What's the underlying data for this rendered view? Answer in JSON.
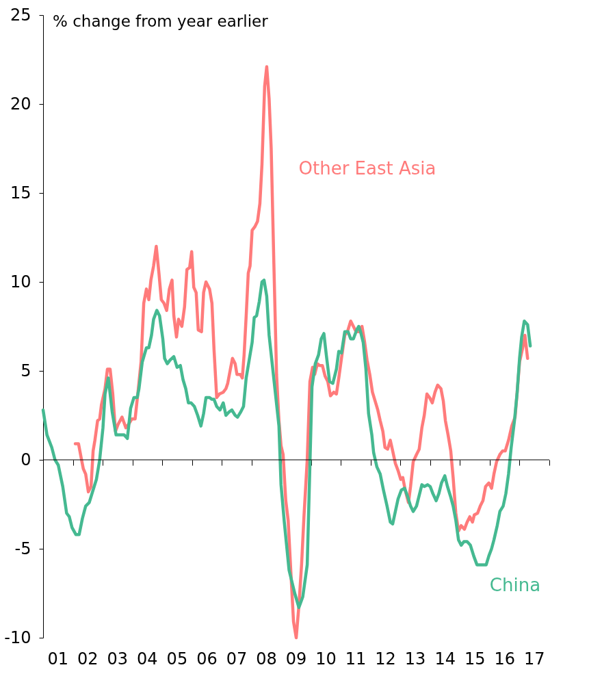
{
  "chart_data": {
    "type": "line",
    "ylabel": "% change from year earlier",
    "xlim": [
      0.5,
      17.5
    ],
    "ylim": [
      -10,
      25
    ],
    "yticks": [
      -10,
      -5,
      0,
      5,
      10,
      15,
      20,
      25
    ],
    "xticks": [
      {
        "value": 0.5,
        "label": null
      },
      {
        "value": 1,
        "label": "01"
      },
      {
        "value": 1.5,
        "label": null
      },
      {
        "value": 2,
        "label": "02"
      },
      {
        "value": 2.5,
        "label": null
      },
      {
        "value": 3,
        "label": "03"
      },
      {
        "value": 3.5,
        "label": null
      },
      {
        "value": 4,
        "label": "04"
      },
      {
        "value": 4.5,
        "label": null
      },
      {
        "value": 5,
        "label": "05"
      },
      {
        "value": 5.5,
        "label": null
      },
      {
        "value": 6,
        "label": "06"
      },
      {
        "value": 6.5,
        "label": null
      },
      {
        "value": 7,
        "label": "07"
      },
      {
        "value": 7.5,
        "label": null
      },
      {
        "value": 8,
        "label": "08"
      },
      {
        "value": 8.5,
        "label": null
      },
      {
        "value": 9,
        "label": "09"
      },
      {
        "value": 9.5,
        "label": null
      },
      {
        "value": 10,
        "label": "10"
      },
      {
        "value": 10.5,
        "label": null
      },
      {
        "value": 11,
        "label": "11"
      },
      {
        "value": 11.5,
        "label": null
      },
      {
        "value": 12,
        "label": "12"
      },
      {
        "value": 12.5,
        "label": null
      },
      {
        "value": 13,
        "label": "13"
      },
      {
        "value": 13.5,
        "label": null
      },
      {
        "value": 14,
        "label": "14"
      },
      {
        "value": 14.5,
        "label": null
      },
      {
        "value": 15,
        "label": "15"
      },
      {
        "value": 15.5,
        "label": null
      },
      {
        "value": 16,
        "label": "16"
      },
      {
        "value": 16.5,
        "label": null
      },
      {
        "value": 17,
        "label": "17"
      },
      {
        "value": 17.5,
        "label": null
      }
    ],
    "grid": false,
    "legend": false,
    "line_style": "solid",
    "ref_lines": [
      {
        "axis": "y",
        "value": 0,
        "color": "#000000"
      }
    ],
    "series": [
      {
        "name": "Other East Asia",
        "color": "#ff7b7b",
        "x": [
          1.58,
          1.69,
          1.78,
          1.85,
          1.93,
          2.02,
          2.11,
          2.18,
          2.24,
          2.33,
          2.4,
          2.46,
          2.58,
          2.66,
          2.75,
          2.84,
          2.93,
          3.02,
          3.15,
          3.28,
          3.37,
          3.48,
          3.59,
          3.68,
          3.79,
          3.88,
          3.97,
          4.05,
          4.12,
          4.21,
          4.3,
          4.39,
          4.47,
          4.56,
          4.65,
          4.74,
          4.83,
          4.89,
          4.98,
          5.05,
          5.16,
          5.25,
          5.33,
          5.42,
          5.49,
          5.56,
          5.64,
          5.71,
          5.82,
          5.89,
          5.97,
          6.09,
          6.17,
          6.24,
          6.33,
          6.42,
          6.55,
          6.64,
          6.7,
          6.79,
          6.86,
          6.95,
          7.01,
          7.12,
          7.19,
          7.25,
          7.32,
          7.39,
          7.45,
          7.52,
          7.61,
          7.7,
          7.78,
          7.85,
          7.94,
          8.01,
          8.09,
          8.16,
          8.25,
          8.34,
          8.42,
          8.49,
          8.56,
          8.65,
          8.73,
          8.82,
          8.91,
          9.0,
          9.09,
          9.18,
          9.26,
          9.37,
          9.46,
          9.55,
          9.62,
          9.71,
          9.79,
          9.88,
          9.97,
          10.06,
          10.15,
          10.26,
          10.35,
          10.43,
          10.52,
          10.63,
          10.72,
          10.83,
          10.92,
          11.01,
          11.1,
          11.21,
          11.29,
          11.38,
          11.47,
          11.56,
          11.65,
          11.74,
          11.82,
          11.91,
          11.98,
          12.07,
          12.16,
          12.24,
          12.33,
          12.42,
          12.51,
          12.58,
          12.66,
          12.77,
          12.84,
          12.93,
          13.04,
          13.13,
          13.22,
          13.3,
          13.39,
          13.48,
          13.57,
          13.66,
          13.75,
          13.86,
          13.94,
          14.01,
          14.1,
          14.19,
          14.27,
          14.36,
          14.45,
          14.54,
          14.65,
          14.74,
          14.83,
          14.92,
          14.98,
          15.09,
          15.18,
          15.27,
          15.36,
          15.47,
          15.56,
          15.64,
          15.73,
          15.84,
          15.93,
          16.02,
          16.13,
          16.24,
          16.35,
          16.42,
          16.5,
          16.62,
          16.68,
          16.77
        ],
        "values": [
          0.9,
          0.9,
          0.1,
          -0.5,
          -0.8,
          -1.8,
          -1.5,
          0.5,
          1.1,
          2.2,
          2.3,
          3.1,
          4.0,
          5.1,
          5.1,
          3.7,
          1.6,
          2.0,
          2.4,
          1.8,
          2.0,
          2.3,
          2.3,
          3.7,
          5.5,
          8.8,
          9.6,
          9.0,
          10.1,
          10.9,
          12.0,
          10.5,
          9.0,
          8.8,
          8.4,
          9.6,
          10.1,
          8.1,
          6.9,
          7.9,
          7.5,
          8.6,
          10.7,
          10.8,
          11.7,
          9.7,
          9.4,
          7.3,
          7.2,
          9.4,
          10.0,
          9.6,
          8.8,
          6.2,
          3.5,
          3.7,
          3.8,
          4.0,
          4.3,
          5.1,
          5.7,
          5.4,
          4.8,
          4.8,
          4.6,
          5.9,
          8.1,
          10.5,
          10.9,
          12.9,
          13.1,
          13.4,
          14.4,
          16.6,
          21.0,
          22.1,
          20.3,
          17.5,
          11.0,
          4.8,
          2.2,
          0.8,
          0.3,
          -2.3,
          -3.4,
          -6.3,
          -9.1,
          -10.0,
          -8.2,
          -5.9,
          -3.2,
          0.0,
          4.4,
          5.2,
          4.8,
          5.4,
          5.3,
          5.3,
          4.7,
          4.4,
          3.6,
          3.8,
          3.7,
          4.6,
          5.7,
          7.0,
          7.2,
          7.8,
          7.5,
          7.2,
          7.2,
          7.5,
          6.7,
          5.6,
          4.8,
          3.8,
          3.3,
          2.8,
          2.2,
          1.6,
          0.7,
          0.6,
          1.1,
          0.5,
          -0.2,
          -0.6,
          -1.1,
          -1.0,
          -1.7,
          -2.4,
          -1.5,
          -0.1,
          0.3,
          0.6,
          1.8,
          2.5,
          3.7,
          3.5,
          3.2,
          3.8,
          4.2,
          4.0,
          3.3,
          2.2,
          1.4,
          0.5,
          -1.0,
          -3.0,
          -4.0,
          -3.7,
          -3.9,
          -3.5,
          -3.2,
          -3.5,
          -3.1,
          -3.0,
          -2.6,
          -2.3,
          -1.5,
          -1.3,
          -1.6,
          -0.8,
          -0.1,
          0.3,
          0.5,
          0.5,
          1.1,
          1.9,
          2.4,
          3.8,
          5.5,
          6.4,
          7.0,
          5.7
        ]
      },
      {
        "name": "China",
        "color": "#45b991",
        "x": [
          0.5,
          0.63,
          0.79,
          0.9,
          1.01,
          1.16,
          1.29,
          1.38,
          1.47,
          1.6,
          1.71,
          1.82,
          1.93,
          2.05,
          2.16,
          2.29,
          2.4,
          2.51,
          2.58,
          2.69,
          2.82,
          2.95,
          3.06,
          3.22,
          3.33,
          3.44,
          3.55,
          3.66,
          3.72,
          3.83,
          3.97,
          4.05,
          4.14,
          4.21,
          4.32,
          4.41,
          4.52,
          4.58,
          4.67,
          4.76,
          4.89,
          5.0,
          5.11,
          5.2,
          5.29,
          5.38,
          5.47,
          5.58,
          5.69,
          5.8,
          5.89,
          5.97,
          6.09,
          6.17,
          6.24,
          6.33,
          6.44,
          6.55,
          6.64,
          6.75,
          6.84,
          6.95,
          7.03,
          7.14,
          7.23,
          7.32,
          7.41,
          7.52,
          7.59,
          7.67,
          7.76,
          7.85,
          7.92,
          8.01,
          8.09,
          8.42,
          8.49,
          8.6,
          8.76,
          8.95,
          9.09,
          9.22,
          9.37,
          9.46,
          9.53,
          9.64,
          9.75,
          9.84,
          9.93,
          10.01,
          10.12,
          10.23,
          10.35,
          10.43,
          10.52,
          10.63,
          10.74,
          10.83,
          10.92,
          11.03,
          11.1,
          11.16,
          11.25,
          11.34,
          11.43,
          11.54,
          11.6,
          11.71,
          11.82,
          11.93,
          12.05,
          12.16,
          12.24,
          12.33,
          12.42,
          12.53,
          12.64,
          12.75,
          12.84,
          12.93,
          13.04,
          13.13,
          13.22,
          13.3,
          13.41,
          13.5,
          13.59,
          13.7,
          13.79,
          13.88,
          13.99,
          14.08,
          14.19,
          14.27,
          14.36,
          14.45,
          14.54,
          14.63,
          14.74,
          14.85,
          14.96,
          15.07,
          15.18,
          15.29,
          15.38,
          15.47,
          15.56,
          15.64,
          15.75,
          15.84,
          15.95,
          16.04,
          16.13,
          16.22,
          16.33,
          16.42,
          16.5,
          16.57,
          16.66,
          16.77,
          16.86
        ],
        "values": [
          2.8,
          1.4,
          0.7,
          0.0,
          -0.3,
          -1.5,
          -3.0,
          -3.2,
          -3.8,
          -4.2,
          -4.2,
          -3.3,
          -2.6,
          -2.4,
          -1.8,
          -1.1,
          0.0,
          1.8,
          3.7,
          4.6,
          2.7,
          1.4,
          1.4,
          1.4,
          1.2,
          2.9,
          3.5,
          3.5,
          4.0,
          5.5,
          6.3,
          6.3,
          7.0,
          7.9,
          8.4,
          8.1,
          6.8,
          5.7,
          5.4,
          5.6,
          5.8,
          5.2,
          5.3,
          4.5,
          4.0,
          3.2,
          3.2,
          3.0,
          2.5,
          1.9,
          2.6,
          3.5,
          3.5,
          3.4,
          3.4,
          3.0,
          2.8,
          3.2,
          2.5,
          2.7,
          2.8,
          2.5,
          2.4,
          2.7,
          3.0,
          4.6,
          5.5,
          6.6,
          8.0,
          8.1,
          8.9,
          10.0,
          10.1,
          9.2,
          7.0,
          1.9,
          -1.4,
          -3.5,
          -6.2,
          -7.5,
          -8.3,
          -7.7,
          -5.9,
          -0.3,
          4.1,
          5.4,
          5.9,
          6.8,
          7.1,
          5.9,
          4.4,
          4.3,
          5.1,
          6.1,
          6.0,
          7.2,
          7.2,
          6.8,
          6.8,
          7.3,
          7.5,
          7.2,
          6.6,
          5.1,
          2.6,
          1.4,
          0.4,
          -0.4,
          -0.8,
          -1.7,
          -2.6,
          -3.5,
          -3.6,
          -2.9,
          -2.2,
          -1.7,
          -1.6,
          -2.1,
          -2.6,
          -2.9,
          -2.6,
          -2.0,
          -1.4,
          -1.5,
          -1.4,
          -1.5,
          -1.9,
          -2.3,
          -1.9,
          -1.3,
          -0.9,
          -1.5,
          -2.1,
          -2.6,
          -3.4,
          -4.5,
          -4.8,
          -4.6,
          -4.6,
          -4.8,
          -5.4,
          -5.9,
          -5.9,
          -5.9,
          -5.9,
          -5.4,
          -5.0,
          -4.5,
          -3.7,
          -2.9,
          -2.6,
          -1.9,
          -0.8,
          0.7,
          2.2,
          3.8,
          5.7,
          6.9,
          7.8,
          7.6,
          6.4
        ]
      }
    ]
  }
}
